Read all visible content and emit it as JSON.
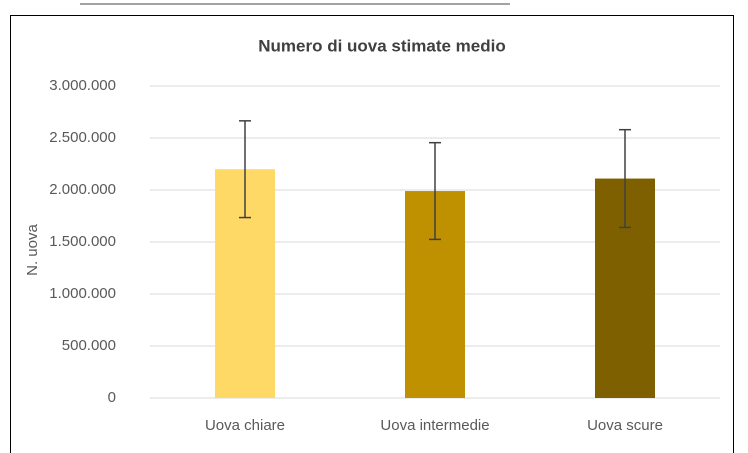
{
  "chart_data": {
    "type": "bar",
    "title": "Numero di uova stimate medio",
    "y_label": "N. uova",
    "categories": [
      "Uova chiare",
      "Uova intermedie",
      "Uova scure"
    ],
    "values": [
      2200000,
      1990000,
      2110000
    ],
    "errors": [
      465000,
      465000,
      470000
    ],
    "colors": [
      "#FFD966",
      "#BF9000",
      "#7F6000"
    ],
    "ylim": [
      0,
      3000000
    ],
    "yticks": [
      0,
      {
        "value": 500000,
        "label": "500.000"
      },
      {
        "value": 1000000,
        "label": "1.000.000"
      },
      {
        "value": 1500000,
        "label": "1.500.000"
      },
      {
        "value": 2000000,
        "label": "2.000.000"
      },
      {
        "value": 2500000,
        "label": "2.500.000"
      },
      {
        "value": 3000000,
        "label": "3.000.000"
      }
    ],
    "grid": true
  }
}
